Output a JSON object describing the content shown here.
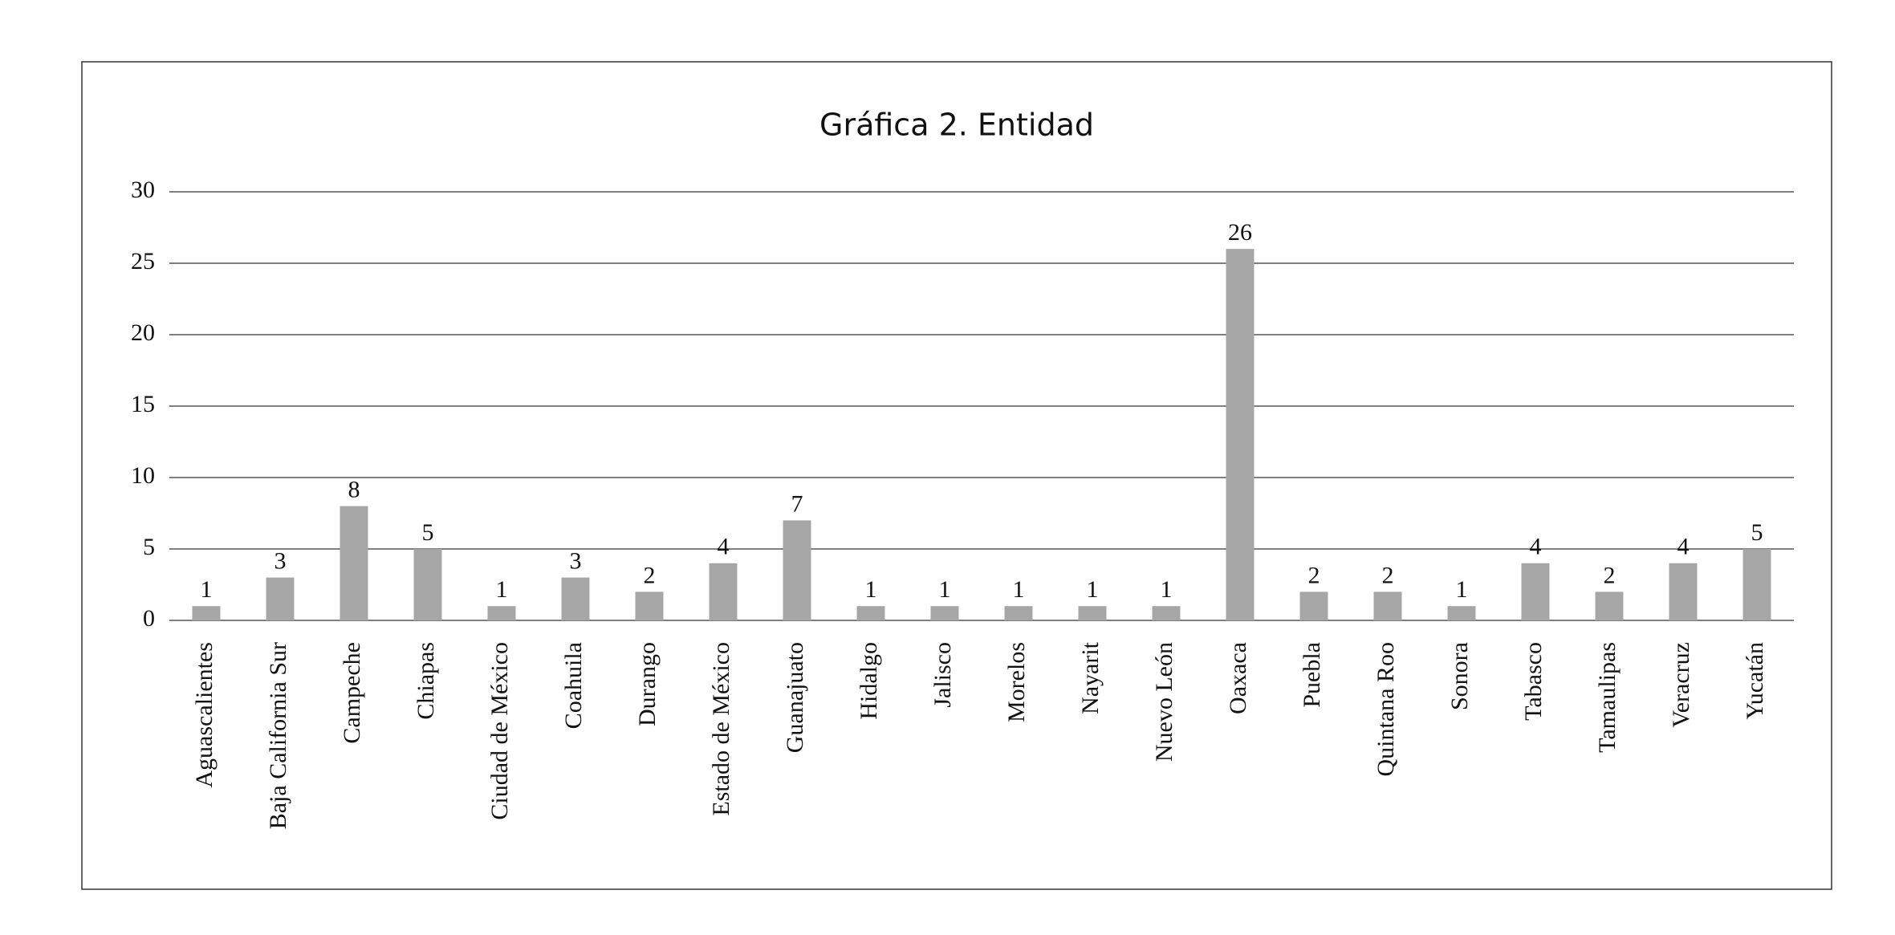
{
  "chart_data": {
    "type": "bar",
    "title": "Gráfica 2. Entidad",
    "categories": [
      "Aguascalientes",
      "Baja California Sur",
      "Campeche",
      "Chiapas",
      "Ciudad de México",
      "Coahuila",
      "Durango",
      "Estado de México",
      "Guanajuato",
      "Hidalgo",
      "Jalisco",
      "Morelos",
      "Nayarit",
      "Nuevo León",
      "Oaxaca",
      "Puebla",
      "Quintana Roo",
      "Sonora",
      "Tabasco",
      "Tamaulipas",
      "Veracruz",
      "Yucatán"
    ],
    "values": [
      1,
      3,
      8,
      5,
      1,
      3,
      2,
      4,
      7,
      1,
      1,
      1,
      1,
      1,
      26,
      2,
      2,
      1,
      4,
      2,
      4,
      5
    ],
    "color": "#a6a6a6",
    "ylim": [
      0,
      30
    ],
    "yticks": [
      0,
      5,
      10,
      15,
      20,
      25,
      30
    ],
    "grid": true
  }
}
